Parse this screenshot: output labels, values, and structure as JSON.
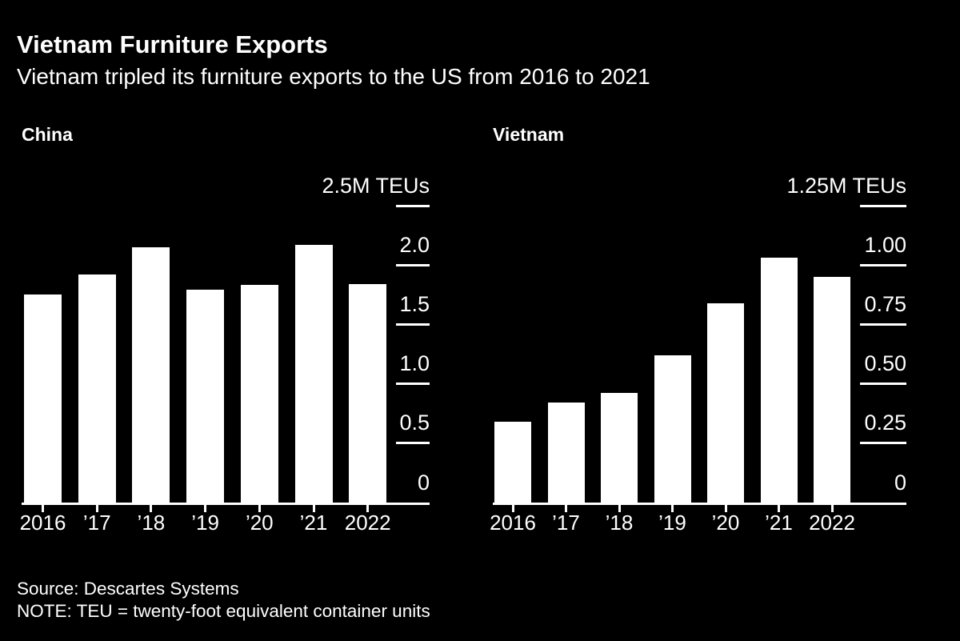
{
  "header": {
    "title": "Vietnam Furniture Exports",
    "subtitle": "Vietnam tripled its furniture exports to the US from 2016 to 2021"
  },
  "footer": {
    "source": "Source: Descartes Systems",
    "note": "NOTE: TEU = twenty-foot equivalent container units"
  },
  "colors": {
    "background": "#000000",
    "foreground": "#ffffff",
    "bar": "#ffffff"
  },
  "chart_data": [
    {
      "type": "bar",
      "title": "China",
      "unit": "M TEUs",
      "categories": [
        "2016",
        "’17",
        "’18",
        "’19",
        "’20",
        "’21",
        "2022"
      ],
      "values": [
        1.75,
        1.92,
        2.15,
        1.79,
        1.83,
        2.17,
        1.84
      ],
      "ylim": [
        0,
        2.5
      ],
      "grid": false,
      "legend": "none",
      "axis_side": "right",
      "yticks": [
        {
          "label": "2.5M TEUs",
          "value": 2.5
        },
        {
          "label": "2.0",
          "value": 2.0
        },
        {
          "label": "1.5",
          "value": 1.5
        },
        {
          "label": "1.0",
          "value": 1.0
        },
        {
          "label": "0.5",
          "value": 0.5
        },
        {
          "label": "0",
          "value": 0
        }
      ]
    },
    {
      "type": "bar",
      "title": "Vietnam",
      "unit": "M TEUs",
      "categories": [
        "2016",
        "’17",
        "’18",
        "’19",
        "’20",
        "’21",
        "2022"
      ],
      "values": [
        0.34,
        0.42,
        0.46,
        0.62,
        0.84,
        1.03,
        0.95
      ],
      "ylim": [
        0,
        1.25
      ],
      "grid": false,
      "legend": "none",
      "axis_side": "right",
      "yticks": [
        {
          "label": "1.25M TEUs",
          "value": 1.25
        },
        {
          "label": "1.00",
          "value": 1.0
        },
        {
          "label": "0.75",
          "value": 0.75
        },
        {
          "label": "0.50",
          "value": 0.5
        },
        {
          "label": "0.25",
          "value": 0.25
        },
        {
          "label": "0",
          "value": 0
        }
      ]
    }
  ]
}
